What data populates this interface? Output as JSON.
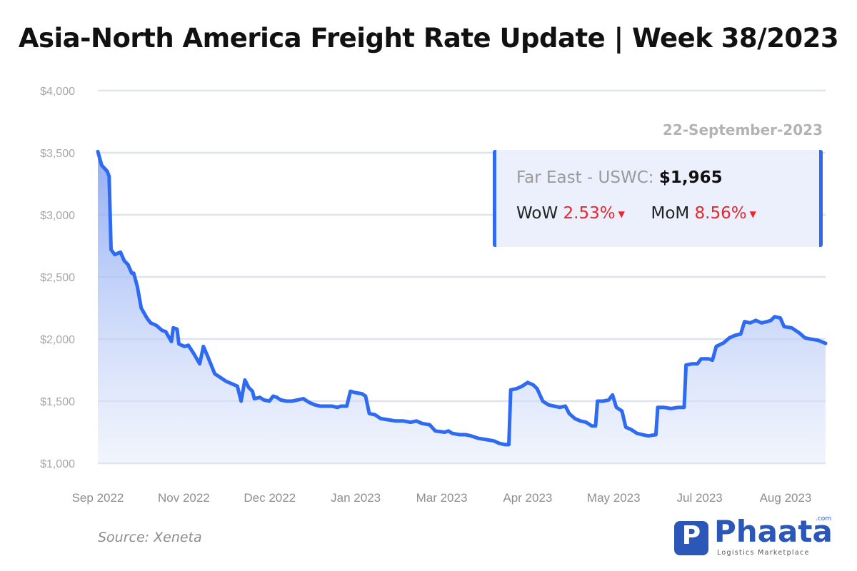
{
  "title": "Asia-North America Freight Rate Update | Week 38/2023",
  "chart_data": {
    "type": "area",
    "ylim": [
      1000,
      4000
    ],
    "y_ticks": [
      1000,
      1500,
      2000,
      2500,
      3000,
      3500,
      4000
    ],
    "y_tick_labels": [
      "$1,000",
      "$1,500",
      "$2,000",
      "$2,500",
      "$3,000",
      "$3,500",
      "$4,000"
    ],
    "x_tick_labels": [
      "Sep 2022",
      "Nov 2022",
      "Dec 2022",
      "Jan 2023",
      "Mar 2023",
      "Apr 2023",
      "May 2023",
      "Jul 2023",
      "Aug 2023"
    ],
    "x_range": [
      "2022-09-01",
      "2023-09-22"
    ],
    "grid": true,
    "series": [
      {
        "name": "Far East - USWC",
        "color": "#2f6bf2",
        "points": [
          [
            "2022-09-01",
            3510
          ],
          [
            "2022-09-03",
            3400
          ],
          [
            "2022-09-06",
            3350
          ],
          [
            "2022-09-07",
            3310
          ],
          [
            "2022-09-08",
            2720
          ],
          [
            "2022-09-10",
            2680
          ],
          [
            "2022-09-13",
            2700
          ],
          [
            "2022-09-15",
            2630
          ],
          [
            "2022-09-17",
            2600
          ],
          [
            "2022-09-19",
            2530
          ],
          [
            "2022-09-20",
            2530
          ],
          [
            "2022-09-22",
            2420
          ],
          [
            "2022-09-24",
            2250
          ],
          [
            "2022-09-27",
            2170
          ],
          [
            "2022-09-29",
            2130
          ],
          [
            "2022-10-02",
            2110
          ],
          [
            "2022-10-05",
            2070
          ],
          [
            "2022-10-07",
            2060
          ],
          [
            "2022-10-10",
            1980
          ],
          [
            "2022-10-11",
            2090
          ],
          [
            "2022-10-13",
            2080
          ],
          [
            "2022-10-14",
            1960
          ],
          [
            "2022-10-17",
            1940
          ],
          [
            "2022-10-19",
            1950
          ],
          [
            "2022-10-22",
            1880
          ],
          [
            "2022-10-25",
            1800
          ],
          [
            "2022-10-27",
            1940
          ],
          [
            "2022-10-29",
            1870
          ],
          [
            "2022-11-02",
            1720
          ],
          [
            "2022-11-05",
            1690
          ],
          [
            "2022-11-08",
            1660
          ],
          [
            "2022-11-11",
            1640
          ],
          [
            "2022-11-14",
            1620
          ],
          [
            "2022-11-16",
            1500
          ],
          [
            "2022-11-18",
            1670
          ],
          [
            "2022-11-20",
            1610
          ],
          [
            "2022-11-22",
            1580
          ],
          [
            "2022-11-23",
            1520
          ],
          [
            "2022-11-26",
            1530
          ],
          [
            "2022-11-28",
            1510
          ],
          [
            "2022-12-01",
            1500
          ],
          [
            "2022-12-03",
            1540
          ],
          [
            "2022-12-05",
            1530
          ],
          [
            "2022-12-07",
            1510
          ],
          [
            "2022-12-10",
            1500
          ],
          [
            "2022-12-13",
            1500
          ],
          [
            "2022-12-16",
            1510
          ],
          [
            "2022-12-19",
            1520
          ],
          [
            "2022-12-22",
            1490
          ],
          [
            "2022-12-25",
            1470
          ],
          [
            "2022-12-28",
            1460
          ],
          [
            "2023-01-03",
            1460
          ],
          [
            "2023-01-06",
            1450
          ],
          [
            "2023-01-08",
            1460
          ],
          [
            "2023-01-11",
            1460
          ],
          [
            "2023-01-13",
            1580
          ],
          [
            "2023-01-15",
            1570
          ],
          [
            "2023-01-19",
            1560
          ],
          [
            "2023-01-21",
            1540
          ],
          [
            "2023-01-23",
            1400
          ],
          [
            "2023-01-26",
            1390
          ],
          [
            "2023-01-29",
            1360
          ],
          [
            "2023-02-02",
            1350
          ],
          [
            "2023-02-06",
            1340
          ],
          [
            "2023-02-10",
            1340
          ],
          [
            "2023-02-14",
            1330
          ],
          [
            "2023-02-17",
            1340
          ],
          [
            "2023-02-20",
            1320
          ],
          [
            "2023-02-24",
            1310
          ],
          [
            "2023-02-27",
            1260
          ],
          [
            "2023-03-04",
            1250
          ],
          [
            "2023-03-06",
            1260
          ],
          [
            "2023-03-08",
            1240
          ],
          [
            "2023-03-12",
            1230
          ],
          [
            "2023-03-15",
            1230
          ],
          [
            "2023-03-18",
            1220
          ],
          [
            "2023-03-22",
            1200
          ],
          [
            "2023-03-26",
            1190
          ],
          [
            "2023-03-30",
            1180
          ],
          [
            "2023-04-02",
            1160
          ],
          [
            "2023-04-05",
            1150
          ],
          [
            "2023-04-07",
            1150
          ],
          [
            "2023-04-08",
            1590
          ],
          [
            "2023-04-11",
            1600
          ],
          [
            "2023-04-14",
            1620
          ],
          [
            "2023-04-17",
            1650
          ],
          [
            "2023-04-20",
            1630
          ],
          [
            "2023-04-22",
            1600
          ],
          [
            "2023-04-25",
            1500
          ],
          [
            "2023-04-28",
            1470
          ],
          [
            "2023-05-01",
            1460
          ],
          [
            "2023-05-04",
            1450
          ],
          [
            "2023-05-07",
            1460
          ],
          [
            "2023-05-09",
            1400
          ],
          [
            "2023-05-12",
            1360
          ],
          [
            "2023-05-15",
            1340
          ],
          [
            "2023-05-18",
            1330
          ],
          [
            "2023-05-21",
            1300
          ],
          [
            "2023-05-23",
            1300
          ],
          [
            "2023-05-24",
            1500
          ],
          [
            "2023-05-27",
            1500
          ],
          [
            "2023-05-30",
            1510
          ],
          [
            "2023-06-01",
            1550
          ],
          [
            "2023-06-03",
            1450
          ],
          [
            "2023-06-06",
            1420
          ],
          [
            "2023-06-08",
            1290
          ],
          [
            "2023-06-11",
            1270
          ],
          [
            "2023-06-14",
            1240
          ],
          [
            "2023-06-17",
            1230
          ],
          [
            "2023-06-20",
            1220
          ],
          [
            "2023-06-24",
            1230
          ],
          [
            "2023-06-25",
            1450
          ],
          [
            "2023-06-28",
            1450
          ],
          [
            "2023-07-02",
            1440
          ],
          [
            "2023-07-06",
            1450
          ],
          [
            "2023-07-09",
            1450
          ],
          [
            "2023-07-10",
            1790
          ],
          [
            "2023-07-13",
            1800
          ],
          [
            "2023-07-16",
            1800
          ],
          [
            "2023-07-18",
            1840
          ],
          [
            "2023-07-22",
            1840
          ],
          [
            "2023-07-24",
            1830
          ],
          [
            "2023-07-26",
            1940
          ],
          [
            "2023-07-30",
            1970
          ],
          [
            "2023-08-02",
            2010
          ],
          [
            "2023-08-05",
            2030
          ],
          [
            "2023-08-08",
            2040
          ],
          [
            "2023-08-10",
            2140
          ],
          [
            "2023-08-13",
            2130
          ],
          [
            "2023-08-16",
            2150
          ],
          [
            "2023-08-19",
            2130
          ],
          [
            "2023-08-22",
            2140
          ],
          [
            "2023-08-24",
            2150
          ],
          [
            "2023-08-26",
            2180
          ],
          [
            "2023-08-29",
            2170
          ],
          [
            "2023-08-31",
            2100
          ],
          [
            "2023-09-04",
            2090
          ],
          [
            "2023-09-08",
            2050
          ],
          [
            "2023-09-11",
            2010
          ],
          [
            "2023-09-14",
            2000
          ],
          [
            "2023-09-18",
            1990
          ],
          [
            "2023-09-22",
            1965
          ]
        ]
      }
    ]
  },
  "tooltip": {
    "date": "22-September-2023",
    "route": "Far East - USWC:",
    "rate": "$1,965",
    "wow_label": "WoW",
    "wow_value": "2.53%",
    "mom_label": "MoM",
    "mom_value": "8.56%"
  },
  "source": "Source: Xeneta",
  "logo": {
    "word": "Phaata",
    "com": ".com",
    "tagline": "Logistics Marketplace",
    "mark": "P",
    "color": "#2b58b8"
  }
}
